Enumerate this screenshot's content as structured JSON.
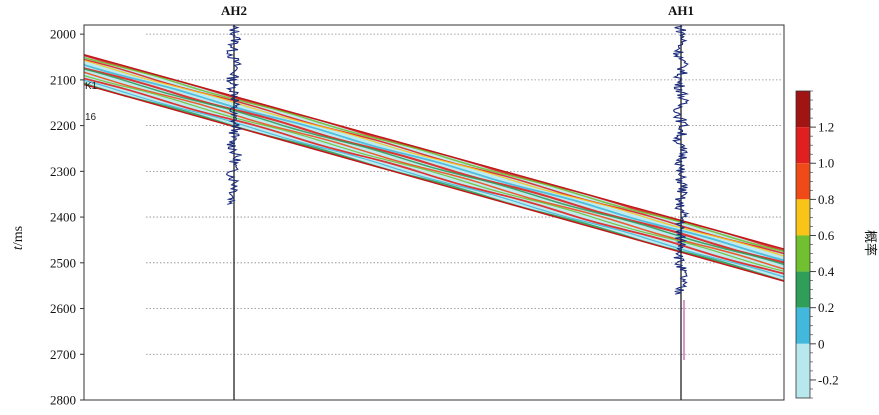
{
  "chart_data": {
    "type": "heatmap",
    "title": "",
    "ylabel_italic": "t",
    "ylabel_unit": "/ms",
    "ylim": [
      2800,
      1980
    ],
    "y_ticks": [
      2000,
      2100,
      2200,
      2300,
      2400,
      2500,
      2600,
      2700,
      2800
    ],
    "y_tick_labels": [
      "2000",
      "2100",
      "2200",
      "2300",
      "2400",
      "2500",
      "2600",
      "2700",
      "2800"
    ],
    "grid": "horizontal dotted",
    "wells": [
      {
        "name": "AH2",
        "label": "AH2"
      },
      {
        "name": "AH1",
        "label": "AH1"
      }
    ],
    "horizon_labels": [
      "K1",
      "16"
    ],
    "colorbar": {
      "title": "概率",
      "range": [
        -0.3,
        1.4
      ],
      "tick_values": [
        1.2,
        1.0,
        0.8,
        0.6,
        0.4,
        0.2,
        0,
        -0.2
      ],
      "tick_labels": [
        "1.2",
        "1.0",
        "0.8",
        "0.6",
        "0.4",
        "0.2",
        "0",
        "-0.2"
      ],
      "colors": [
        {
          "from": 1.2,
          "to": 1.4,
          "color": "#a01414"
        },
        {
          "from": 1.0,
          "to": 1.2,
          "color": "#e02020"
        },
        {
          "from": 0.8,
          "to": 1.0,
          "color": "#f04a18"
        },
        {
          "from": 0.6,
          "to": 0.8,
          "color": "#f8c418"
        },
        {
          "from": 0.4,
          "to": 0.6,
          "color": "#70c030"
        },
        {
          "from": 0.2,
          "to": 0.4,
          "color": "#2f9e58"
        },
        {
          "from": 0.0,
          "to": 0.2,
          "color": "#42b8dc"
        },
        {
          "from": -0.3,
          "to": 0.0,
          "color": "#b8e8ee"
        }
      ]
    },
    "layer_top_ms": [
      2045,
      2470
    ],
    "layer_bottom_ms": [
      2110,
      2540
    ]
  }
}
